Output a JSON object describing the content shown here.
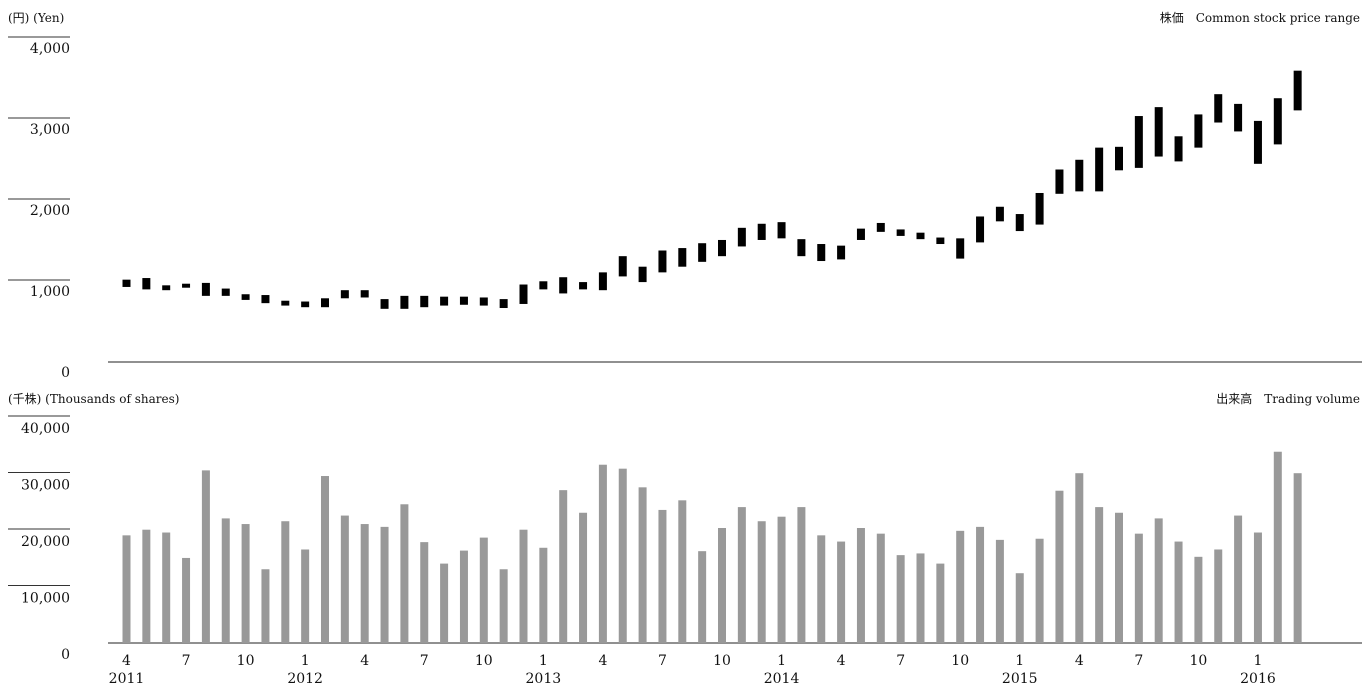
{
  "chart_data": [
    {
      "type": "range-bar",
      "unit_label": "(円) (Yen)",
      "title": "株価　Common stock price range",
      "ylim": [
        0,
        4000
      ],
      "y_ticks": [
        "0",
        "1,000",
        "2,000",
        "3,000",
        "4,000"
      ],
      "y_tick_values": [
        0,
        1000,
        2000,
        3000,
        4000
      ],
      "bar_color": "#000000",
      "x": [
        "2011-04",
        "2011-05",
        "2011-06",
        "2011-07",
        "2011-08",
        "2011-09",
        "2011-10",
        "2011-11",
        "2011-12",
        "2012-01",
        "2012-02",
        "2012-03",
        "2012-04",
        "2012-05",
        "2012-06",
        "2012-07",
        "2012-08",
        "2012-09",
        "2012-10",
        "2012-11",
        "2012-12",
        "2013-01",
        "2013-02",
        "2013-03",
        "2013-04",
        "2013-05",
        "2013-06",
        "2013-07",
        "2013-08",
        "2013-09",
        "2013-10",
        "2013-11",
        "2013-12",
        "2014-01",
        "2014-02",
        "2014-03",
        "2014-04",
        "2014-05",
        "2014-06",
        "2014-07",
        "2014-08",
        "2014-09",
        "2014-10",
        "2014-11",
        "2014-12",
        "2015-01",
        "2015-02",
        "2015-03",
        "2015-04",
        "2015-05",
        "2015-06",
        "2015-07",
        "2015-08",
        "2015-09",
        "2015-10",
        "2015-11",
        "2015-12",
        "2016-01",
        "2016-02",
        "2016-03"
      ],
      "high": [
        1140,
        1160,
        1070,
        1090,
        1100,
        1030,
        960,
        950,
        880,
        870,
        910,
        1010,
        1010,
        900,
        940,
        940,
        930,
        930,
        920,
        900,
        1080,
        1120,
        1170,
        1110,
        1230,
        1430,
        1300,
        1500,
        1530,
        1590,
        1630,
        1780,
        1830,
        1850,
        1640,
        1580,
        1560,
        1770,
        1840,
        1760,
        1720,
        1660,
        1650,
        1920,
        2040,
        1950,
        2210,
        2500,
        2620,
        2770,
        2780,
        3160,
        3270,
        2910,
        3180,
        3430,
        3310,
        3100,
        3380,
        3720
      ],
      "low": [
        1050,
        1020,
        1010,
        1050,
        940,
        940,
        890,
        850,
        820,
        800,
        800,
        910,
        920,
        780,
        780,
        800,
        820,
        830,
        820,
        790,
        840,
        1020,
        970,
        1020,
        1010,
        1180,
        1110,
        1230,
        1300,
        1360,
        1430,
        1550,
        1630,
        1650,
        1430,
        1370,
        1390,
        1630,
        1730,
        1680,
        1640,
        1580,
        1400,
        1600,
        1860,
        1740,
        1820,
        2200,
        2230,
        2230,
        2490,
        2520,
        2660,
        2600,
        2770,
        3080,
        2970,
        2570,
        2810,
        3230
      ]
    },
    {
      "type": "bar",
      "unit_label": "(千株) (Thousands of shares)",
      "title": "出来高　Trading volume",
      "ylim": [
        0,
        40000
      ],
      "y_ticks": [
        "0",
        "10,000",
        "20,000",
        "30,000",
        "40,000"
      ],
      "y_tick_values": [
        0,
        10000,
        20000,
        30000,
        40000
      ],
      "bar_color": "#999999",
      "values": [
        21000,
        22000,
        21500,
        17000,
        32500,
        24000,
        23000,
        15000,
        23500,
        18500,
        31500,
        24500,
        23000,
        22500,
        26500,
        19800,
        16000,
        18300,
        20600,
        15000,
        22000,
        18800,
        29000,
        25000,
        33500,
        32800,
        29500,
        25500,
        27200,
        18200,
        22300,
        26000,
        23500,
        24300,
        26000,
        21000,
        19900,
        22300,
        21300,
        17500,
        17800,
        16000,
        21800,
        22500,
        20200,
        14300,
        20400,
        28900,
        32000,
        26000,
        25000,
        21300,
        24000,
        19900,
        17200,
        18500,
        24500,
        21500,
        35800,
        32000
      ],
      "x_ticks": [
        "4",
        "7",
        "10",
        "1",
        "4",
        "7",
        "10",
        "1",
        "4",
        "7",
        "10",
        "1",
        "4",
        "7",
        "10",
        "1",
        "4",
        "7",
        "10",
        "1"
      ],
      "x_tick_positions": [
        0,
        3,
        6,
        9,
        12,
        15,
        18,
        21,
        24,
        27,
        30,
        33,
        36,
        39,
        42,
        45,
        48,
        51,
        54,
        57
      ],
      "years": [
        "2011",
        "2012",
        "2013",
        "2014",
        "2015",
        "2016"
      ],
      "year_positions": [
        0,
        9,
        21,
        33,
        45,
        57
      ]
    }
  ]
}
